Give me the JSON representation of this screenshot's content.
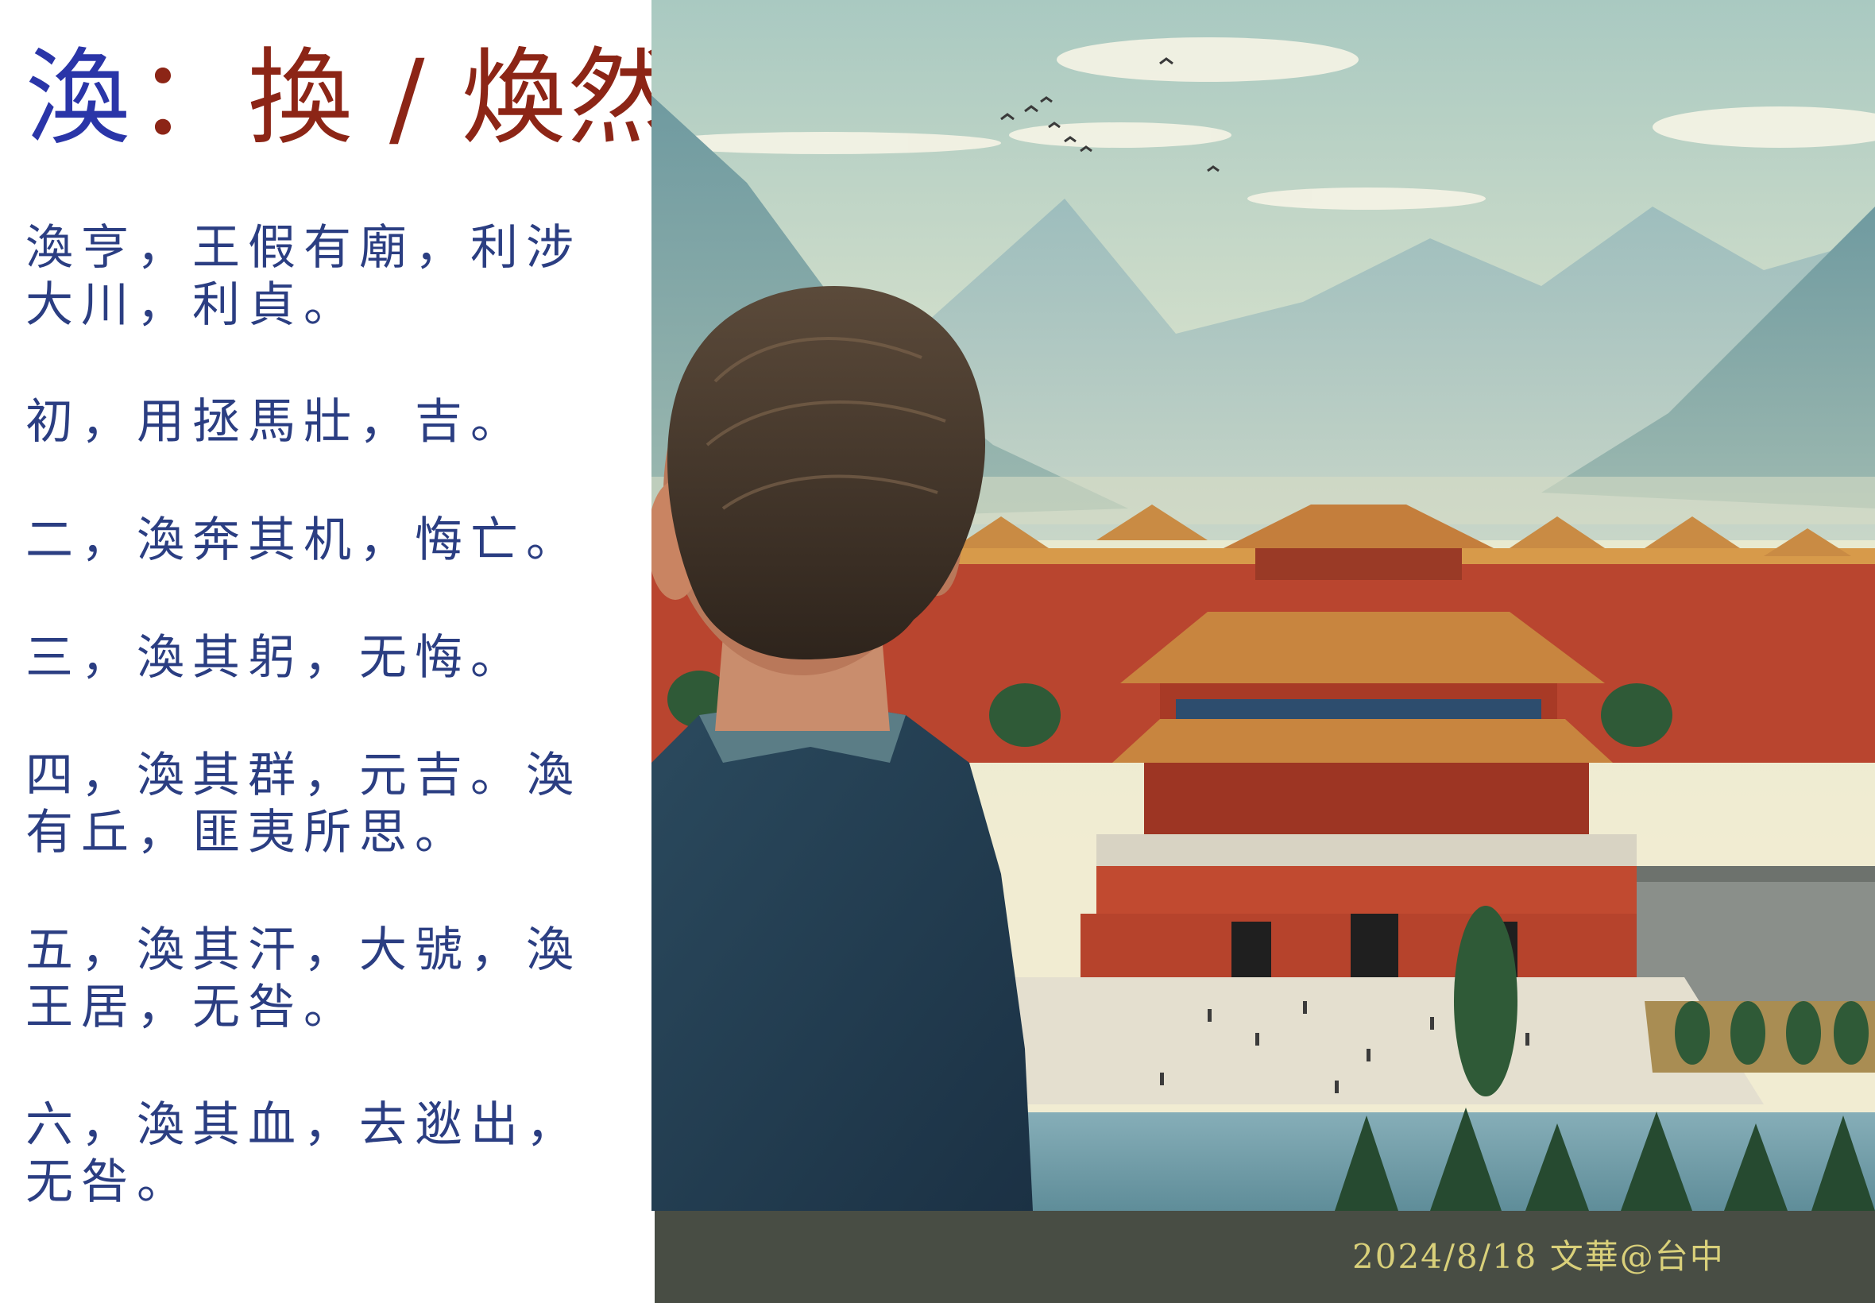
{
  "title": {
    "main_char": "渙",
    "separator": "：",
    "alternates": "換 / 煥然"
  },
  "verses": [
    {
      "line1": "渙亨，王假有廟，利涉",
      "line2": "大川，利貞。"
    },
    {
      "line1": "初，用拯馬壯，吉。",
      "line2": ""
    },
    {
      "line1": "二，渙奔其机，悔亡。",
      "line2": ""
    },
    {
      "line1": "三，渙其躬，无悔。",
      "line2": ""
    },
    {
      "line1": "四，渙其群，元吉。渙",
      "line2": "有丘，匪夷所思。"
    },
    {
      "line1": "五，渙其汗，大號，渙",
      "line2": "王居，无咎。"
    },
    {
      "line1": "六，渙其血，去逖出，",
      "line2": "无咎。"
    }
  ],
  "footer": {
    "text": "2024/8/18 文華@台中"
  },
  "colors": {
    "title_main": "#2a35a8",
    "title_accent": "#8c2516",
    "verse_text": "#2b3e82",
    "footer_background": "#484d44",
    "footer_text": "#d9d07a"
  },
  "illustration": {
    "subject": "man-in-suit-looking-at-palace-icon",
    "scene": "imperial-palace-with-mountains-icon"
  }
}
